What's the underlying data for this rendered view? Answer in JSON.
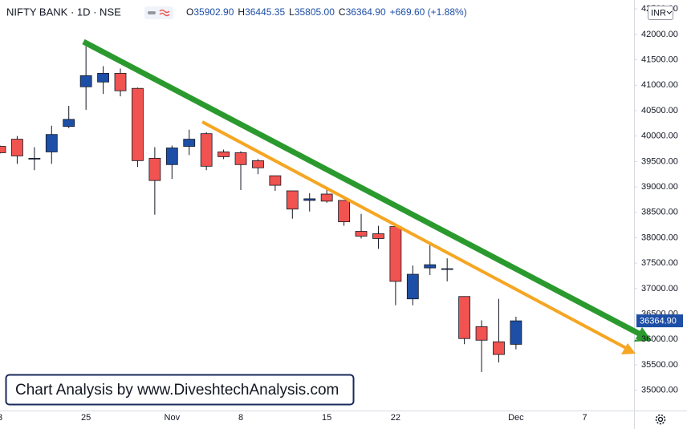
{
  "chart_data": {
    "type": "candlestick",
    "title": "NIFTY BANK · 1D · NSE",
    "legend_values": [
      {
        "key": "O",
        "value": "35902.90"
      },
      {
        "key": "H",
        "value": "36445.35"
      },
      {
        "key": "L",
        "value": "35805.00"
      },
      {
        "key": "C",
        "value": "36364.90"
      }
    ],
    "change": "+669.60 (+1.88%)",
    "currency": "INR",
    "annotation": "Chart Analysis by www.DiveshtechAnalysis.com",
    "up_color": "#1e4fa6",
    "down_color": "#f05350",
    "categories": [
      "3",
      null,
      null,
      null,
      null,
      "25",
      null,
      null,
      null,
      null,
      "Nov",
      null,
      null,
      null,
      "8",
      null,
      null,
      null,
      null,
      "15",
      null,
      null,
      null,
      "22",
      null,
      null,
      null,
      null,
      null,
      null,
      "Dec",
      null,
      null,
      null,
      "7"
    ],
    "open": [
      39797,
      39938,
      39547,
      39688,
      40188,
      40969,
      41063,
      41234,
      40938,
      39563,
      39438,
      39797,
      40047,
      39688,
      39672,
      39516,
      39219,
      38922,
      38734,
      38859,
      38734,
      38125,
      38078,
      38219,
      36797,
      37406,
      37375,
      36844,
      36250,
      35953,
      35902.9,
      null,
      null,
      null,
      null
    ],
    "high": [
      39813,
      40000,
      39781,
      40203,
      40594,
      41766,
      41375,
      41328,
      40953,
      39781,
      39813,
      40125,
      40078,
      39734,
      39703,
      39547,
      39219,
      38922,
      38875,
      38984,
      38734,
      38469,
      38234,
      38219,
      37453,
      37906,
      37594,
      36844,
      36375,
      36797,
      36445.35,
      null,
      null,
      null,
      null
    ],
    "low": [
      39656,
      39453,
      39328,
      39453,
      40156,
      40516,
      40828,
      40781,
      39391,
      38453,
      39156,
      39625,
      39328,
      39547,
      38938,
      39250,
      38922,
      38375,
      38516,
      38688,
      38234,
      37984,
      37781,
      36672,
      36672,
      37266,
      37141,
      35906,
      35359,
      35547,
      35805,
      null,
      null,
      null,
      null
    ],
    "close": [
      39672,
      39609,
      39563,
      40031,
      40328,
      41188,
      41234,
      40891,
      39516,
      39125,
      39766,
      39938,
      39406,
      39594,
      39438,
      39375,
      39031,
      38563,
      38766,
      38719,
      38313,
      38031,
      37984,
      37141,
      37281,
      37469,
      37391,
      36016,
      35984,
      35703,
      36364.9,
      null,
      null,
      null,
      null
    ],
    "last_price": {
      "value": 36364.9,
      "label": "36364.90"
    },
    "ylim": [
      34600,
      42550
    ],
    "yticks": [
      {
        "value": 35000,
        "label": "35000.00"
      },
      {
        "value": 35500,
        "label": "35500.00"
      },
      {
        "value": 36000,
        "label": "36000.00"
      },
      {
        "value": 36500,
        "label": "36500.00"
      },
      {
        "value": 37000,
        "label": "37000.00"
      },
      {
        "value": 37500,
        "label": "37500.00"
      },
      {
        "value": 38000,
        "label": "38000.00"
      },
      {
        "value": 38500,
        "label": "38500.00"
      },
      {
        "value": 39000,
        "label": "39000.00"
      },
      {
        "value": 39500,
        "label": "39500.00"
      },
      {
        "value": 40000,
        "label": "40000.00"
      },
      {
        "value": 40500,
        "label": "40500.00"
      },
      {
        "value": 41000,
        "label": "41000.00"
      },
      {
        "value": 41500,
        "label": "41500.00"
      },
      {
        "value": 42000,
        "label": "42000.00"
      },
      {
        "value": 42500,
        "label": "42500.00"
      }
    ]
  }
}
